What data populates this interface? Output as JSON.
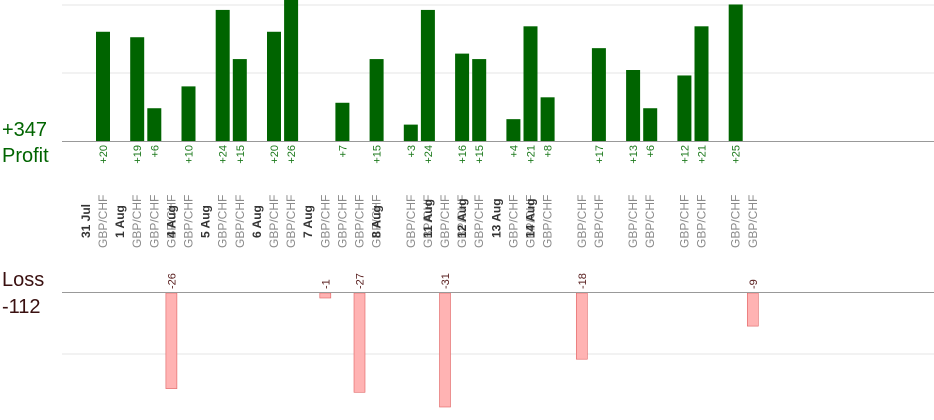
{
  "summary": {
    "profit_total": "+347",
    "profit_label": "Profit",
    "loss_label": "Loss",
    "loss_total": "-112"
  },
  "colors": {
    "profit_bar": "#006400",
    "loss_bar": "#ffb3b3",
    "loss_bar_edge": "#e06060",
    "baseline": "#999999",
    "grid": "#e6e6e6"
  },
  "chart_data": {
    "type": "bar",
    "profit_scale_max": 26,
    "loss_scale_max": 31,
    "dates": [
      {
        "label": "31 Jul",
        "slot": 1
      },
      {
        "label": "1 Aug",
        "slot": 3
      },
      {
        "label": "4 Aug",
        "slot": 6
      },
      {
        "label": "5 Aug",
        "slot": 8
      },
      {
        "label": "6 Aug",
        "slot": 11
      },
      {
        "label": "7 Aug",
        "slot": 14
      },
      {
        "label": "8 Aug",
        "slot": 18
      },
      {
        "label": "11 Aug",
        "slot": 21
      },
      {
        "label": "12 Aug",
        "slot": 23
      },
      {
        "label": "13 Aug",
        "slot": 25
      },
      {
        "label": "14 Aug",
        "slot": 27
      }
    ],
    "trades": [
      {
        "slot": 1,
        "pair": "GBP/CHF",
        "value": 20
      },
      {
        "slot": 3,
        "pair": "GBP/CHF",
        "value": 19
      },
      {
        "slot": 4,
        "pair": "GBP/CHF",
        "value": 6
      },
      {
        "slot": 5,
        "pair": "GBP/CHF",
        "value": -26
      },
      {
        "slot": 6,
        "pair": "GBP/CHF",
        "value": 10
      },
      {
        "slot": 8,
        "pair": "GBP/CHF",
        "value": 24
      },
      {
        "slot": 9,
        "pair": "GBP/CHF",
        "value": 15
      },
      {
        "slot": 11,
        "pair": "GBP/CHF",
        "value": 20
      },
      {
        "slot": 12,
        "pair": "GBP/CHF",
        "value": 26
      },
      {
        "slot": 14,
        "pair": "GBP/CHF",
        "value": -1
      },
      {
        "slot": 15,
        "pair": "GBP/CHF",
        "value": 7
      },
      {
        "slot": 16,
        "pair": "GBP/CHF",
        "value": -27
      },
      {
        "slot": 17,
        "pair": "GBP/CHF",
        "value": 15
      },
      {
        "slot": 19,
        "pair": "GBP/CHF",
        "value": 3
      },
      {
        "slot": 20,
        "pair": "GBP/CHF",
        "value": 24
      },
      {
        "slot": 21,
        "pair": "GBP/CHF",
        "value": -31
      },
      {
        "slot": 22,
        "pair": "GBP/CHF",
        "value": 16
      },
      {
        "slot": 23,
        "pair": "GBP/CHF",
        "value": 15
      },
      {
        "slot": 25,
        "pair": "GBP/CHF",
        "value": 4
      },
      {
        "slot": 26,
        "pair": "GBP/CHF",
        "value": 21
      },
      {
        "slot": 27,
        "pair": "GBP/CHF",
        "value": 8
      },
      {
        "slot": 29,
        "pair": "GBP/CHF",
        "value": -18
      },
      {
        "slot": 30,
        "pair": "GBP/CHF",
        "value": 17
      },
      {
        "slot": 32,
        "pair": "GBP/CHF",
        "value": 13
      },
      {
        "slot": 33,
        "pair": "GBP/CHF",
        "value": 6
      },
      {
        "slot": 35,
        "pair": "GBP/CHF",
        "value": 12
      },
      {
        "slot": 36,
        "pair": "GBP/CHF",
        "value": 21
      },
      {
        "slot": 38,
        "pair": "GBP/CHF",
        "value": 25
      },
      {
        "slot": 39,
        "pair": "GBP/CHF",
        "value": -9
      }
    ]
  }
}
